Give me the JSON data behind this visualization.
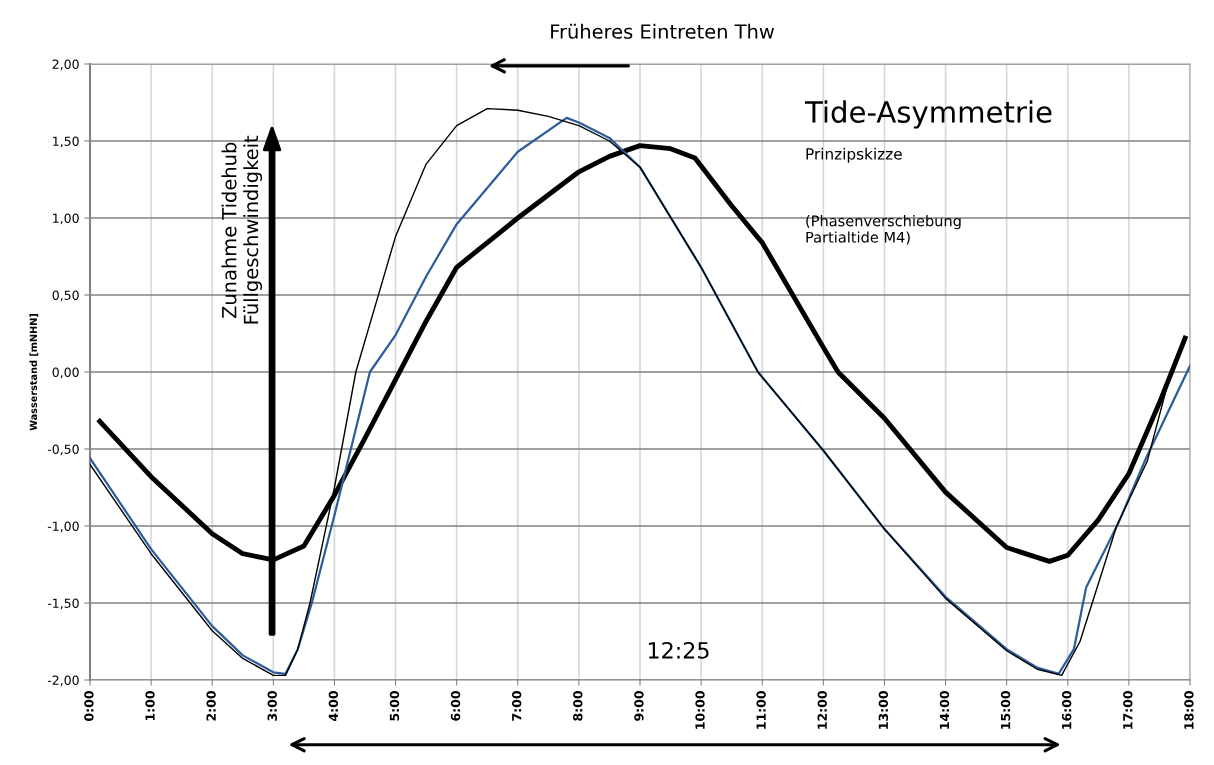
{
  "chart_data": {
    "type": "line",
    "title": "Tide-Asymmetrie",
    "subtitle": "Prinzipskizze",
    "ylabel": "Wasserstand [mNHN]",
    "annotations": [
      "(Phasenverschiebung\nPartialtide M4)",
      "Früheres Eintreten Thw",
      "Zunahme Tidehub\nFüllgeschwindigkeit",
      "12:25"
    ],
    "xlim": [
      0,
      18
    ],
    "ylim": [
      -2,
      2
    ],
    "xticks": [
      {
        "value": 0,
        "label": "0:00"
      },
      {
        "value": 1,
        "label": "1:00"
      },
      {
        "value": 2,
        "label": "2:00"
      },
      {
        "value": 3,
        "label": "3:00"
      },
      {
        "value": 4,
        "label": "4:00"
      },
      {
        "value": 5,
        "label": "5:00"
      },
      {
        "value": 6,
        "label": "6:00"
      },
      {
        "value": 7,
        "label": "7:00"
      },
      {
        "value": 8,
        "label": "8:00"
      },
      {
        "value": 9,
        "label": "9:00"
      },
      {
        "value": 10,
        "label": "10:00"
      },
      {
        "value": 11,
        "label": "11:00"
      },
      {
        "value": 12,
        "label": "12:00"
      },
      {
        "value": 13,
        "label": "13:00"
      },
      {
        "value": 14,
        "label": "14:00"
      },
      {
        "value": 15,
        "label": "15:00"
      },
      {
        "value": 16,
        "label": "16:00"
      },
      {
        "value": 17,
        "label": "17:00"
      },
      {
        "value": 18,
        "label": "18:00"
      }
    ],
    "yticks": [
      {
        "value": -2,
        "label": "-2,00"
      },
      {
        "value": -1.5,
        "label": "-1,50"
      },
      {
        "value": -1,
        "label": "-1,00"
      },
      {
        "value": -0.5,
        "label": "-0,50"
      },
      {
        "value": 0,
        "label": "0,00"
      },
      {
        "value": 0.5,
        "label": "0,50"
      },
      {
        "value": 1,
        "label": "1,00"
      },
      {
        "value": 1.5,
        "label": "1,50"
      },
      {
        "value": 2,
        "label": "2,00"
      }
    ],
    "grid": true,
    "series": [
      {
        "color": "#000000",
        "x": [
          0.16,
          1,
          2,
          2.5,
          3,
          3.5,
          4,
          4.5,
          5,
          5.5,
          6,
          7,
          8,
          8.5,
          9,
          9.5,
          9.9,
          10.5,
          11,
          12,
          12.24,
          13,
          14,
          15,
          15.7,
          16,
          16.5,
          17,
          17.5,
          17.92
        ],
        "values": [
          -0.32,
          -0.68,
          -1.05,
          -1.18,
          -1.22,
          -1.13,
          -0.8,
          -0.43,
          -0.05,
          0.33,
          0.68,
          1.0,
          1.3,
          1.4,
          1.47,
          1.45,
          1.39,
          1.08,
          0.84,
          0.16,
          0.0,
          -0.3,
          -0.78,
          -1.14,
          -1.23,
          -1.19,
          -0.96,
          -0.66,
          -0.2,
          0.22
        ]
      },
      {
        "color": "#2e5c9a",
        "x": [
          0,
          1,
          2,
          2.5,
          3,
          3.2,
          3.4,
          3.63,
          4,
          4.3,
          4.58,
          5,
          5.5,
          6,
          7,
          7.8,
          8,
          8.5,
          9,
          10,
          10.93,
          12,
          13,
          14,
          15,
          15.5,
          15.85,
          16.1,
          16.3,
          16.84,
          17.28,
          18
        ],
        "values": [
          -0.56,
          -1.15,
          -1.65,
          -1.84,
          -1.95,
          -1.96,
          -1.8,
          -1.5,
          -0.93,
          -0.45,
          0.0,
          0.24,
          0.62,
          0.96,
          1.43,
          1.65,
          1.62,
          1.52,
          1.33,
          0.68,
          0.0,
          -0.51,
          -1.02,
          -1.46,
          -1.8,
          -1.92,
          -1.96,
          -1.8,
          -1.4,
          -0.97,
          -0.56,
          0.04
        ]
      },
      {
        "color": "#000000",
        "x": [
          0,
          1,
          2,
          2.5,
          3,
          3.2,
          3.4,
          3.6,
          4,
          4.35,
          5,
          5.5,
          6,
          6.5,
          7,
          7.5,
          8,
          8.5,
          9,
          10,
          10.93,
          12,
          13,
          14,
          15,
          15.5,
          15.9,
          16.2,
          16.8,
          17.3,
          17.66
        ],
        "values": [
          -0.6,
          -1.18,
          -1.68,
          -1.86,
          -1.97,
          -1.97,
          -1.8,
          -1.5,
          -0.75,
          0.0,
          0.88,
          1.35,
          1.6,
          1.71,
          1.7,
          1.66,
          1.6,
          1.5,
          1.33,
          0.68,
          0.0,
          -0.51,
          -1.02,
          -1.47,
          -1.81,
          -1.93,
          -1.97,
          -1.75,
          -1.0,
          -0.58,
          -0.04
        ]
      }
    ]
  }
}
